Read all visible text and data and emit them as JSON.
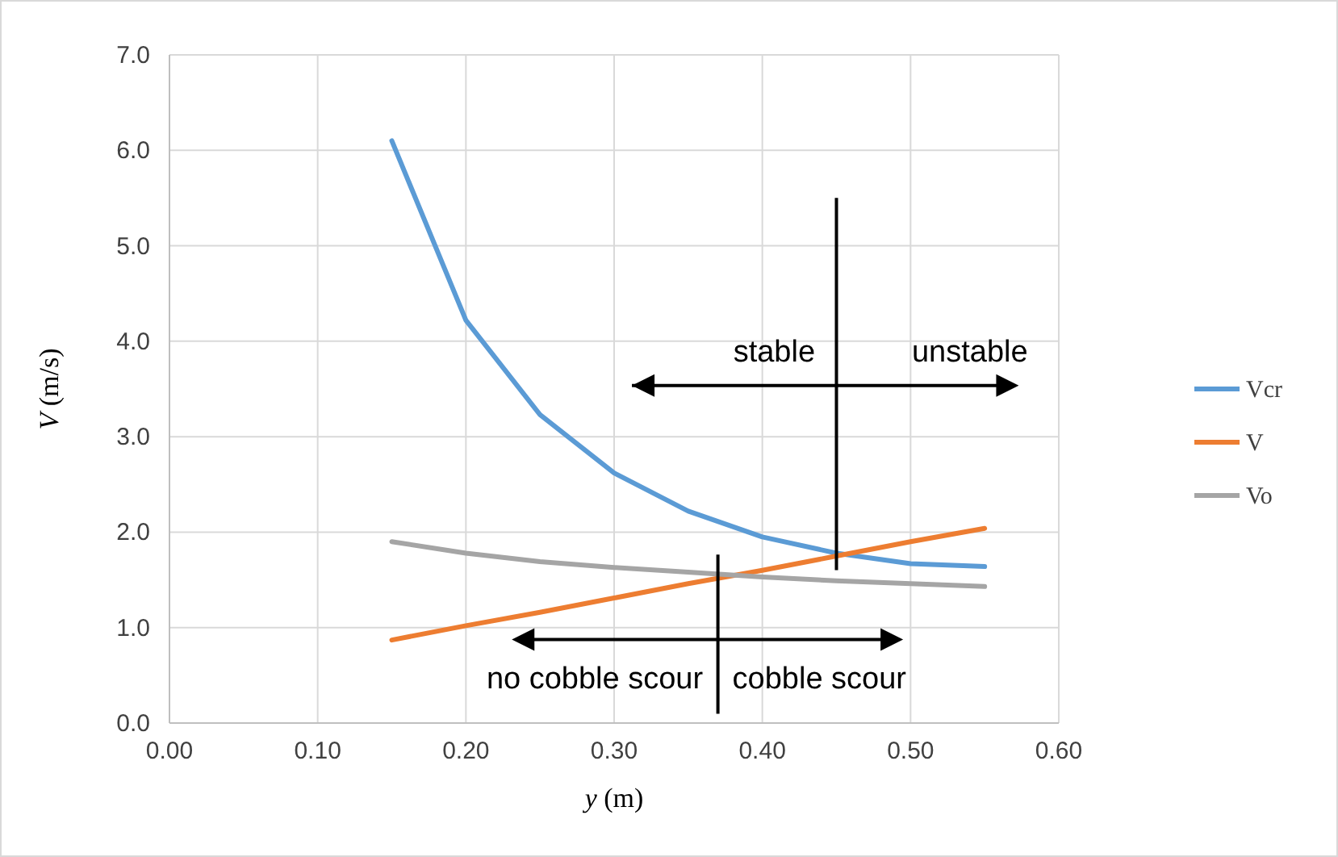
{
  "chart_data": {
    "type": "line",
    "xlabel": "y (m)",
    "ylabel": "V (m/s)",
    "x": [
      0.15,
      0.2,
      0.25,
      0.3,
      0.35,
      0.4,
      0.45,
      0.5,
      0.55
    ],
    "series": [
      {
        "name": "Vcr",
        "color": "#5b9bd5",
        "values": [
          6.1,
          4.22,
          3.23,
          2.62,
          2.22,
          1.95,
          1.78,
          1.67,
          1.64
        ]
      },
      {
        "name": "V",
        "color": "#ed7d31",
        "values": [
          0.87,
          1.02,
          1.16,
          1.31,
          1.46,
          1.6,
          1.75,
          1.9,
          2.04
        ]
      },
      {
        "name": "Vo",
        "color": "#a5a5a5",
        "values": [
          1.9,
          1.78,
          1.69,
          1.63,
          1.58,
          1.53,
          1.49,
          1.46,
          1.43
        ]
      }
    ],
    "xlim": [
      0,
      0.6
    ],
    "xticks": [
      {
        "value": 0,
        "label": "0.00"
      },
      {
        "value": 0.1,
        "label": "0.10"
      },
      {
        "value": 0.2,
        "label": "0.20"
      },
      {
        "value": 0.3,
        "label": "0.30"
      },
      {
        "value": 0.4,
        "label": "0.40"
      },
      {
        "value": 0.5,
        "label": "0.50"
      },
      {
        "value": 0.6,
        "label": "0.60"
      }
    ],
    "ylim": [
      0,
      7
    ],
    "yticks": [
      {
        "value": 0,
        "label": "0.0"
      },
      {
        "value": 1,
        "label": "1.0"
      },
      {
        "value": 2,
        "label": "2.0"
      },
      {
        "value": 3,
        "label": "3.0"
      },
      {
        "value": 4,
        "label": "4.0"
      },
      {
        "value": 5,
        "label": "5.0"
      },
      {
        "value": 6,
        "label": "6.0"
      },
      {
        "value": 7,
        "label": "7.0"
      }
    ],
    "grid": true,
    "legend": "right",
    "marker": "none",
    "line_style": "solid",
    "annotations": [
      "stable",
      "unstable",
      "no cobble scour",
      "cobble scour"
    ]
  }
}
